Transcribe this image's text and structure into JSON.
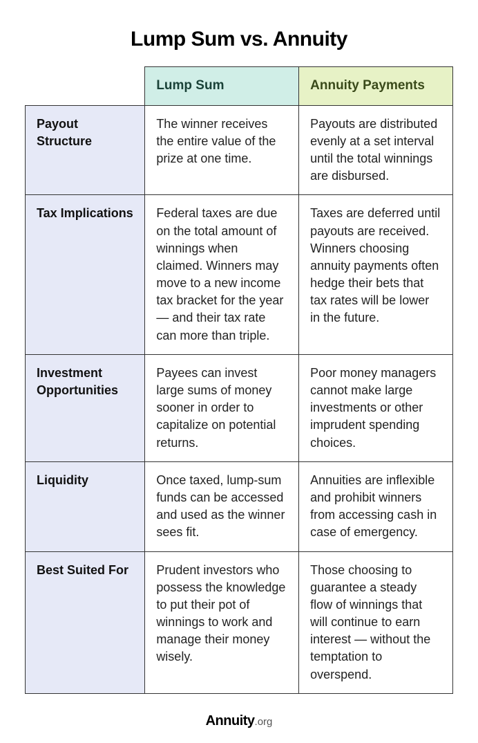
{
  "title": "Lump Sum vs. Annuity",
  "columns": {
    "lump": "Lump Sum",
    "annuity": "Annuity Payments"
  },
  "rows": [
    {
      "label": "Payout Structure",
      "lump": "The winner receives the entire value of the prize at one time.",
      "annuity": "Payouts are distributed evenly at a set interval until the total winnings are disbursed."
    },
    {
      "label": "Tax Implications",
      "lump": "Federal taxes are due on the total amount of winnings when claimed. Winners may move to a new income tax bracket for the year — and their tax rate can more than triple.",
      "annuity": "Taxes are deferred until payouts are received. Winners choosing annuity payments often hedge their bets that tax rates will be lower in the future."
    },
    {
      "label": "Investment Opportunities",
      "lump": "Payees can invest large sums of money sooner in order to capitalize on potential returns.",
      "annuity": "Poor money managers cannot make large investments or other imprudent spending choices."
    },
    {
      "label": "Liquidity",
      "lump": "Once taxed, lump-sum funds can be accessed and used as the winner sees fit.",
      "annuity": "Annuities are inflexible and prohibit winners from accessing cash in case of emergency."
    },
    {
      "label": "Best Suited For",
      "lump": "Prudent investors who possess the knowledge to put their pot of winnings to work and manage their money wisely.",
      "annuity": "Those choosing to guarantee a steady flow of winnings that will continue to earn interest — without the temptation to overspend."
    }
  ],
  "footer": {
    "brand": "Annuity",
    "tld": ".org"
  },
  "styles": {
    "title_fontsize": 30,
    "cell_fontsize": 18,
    "header_lump_bg": "#d0eee7",
    "header_annuity_bg": "#e7f2c6",
    "rowlabel_bg": "#e6e9f7",
    "body_bg": "#ffffff",
    "border_color": "#333333",
    "text_color": "#222222"
  }
}
